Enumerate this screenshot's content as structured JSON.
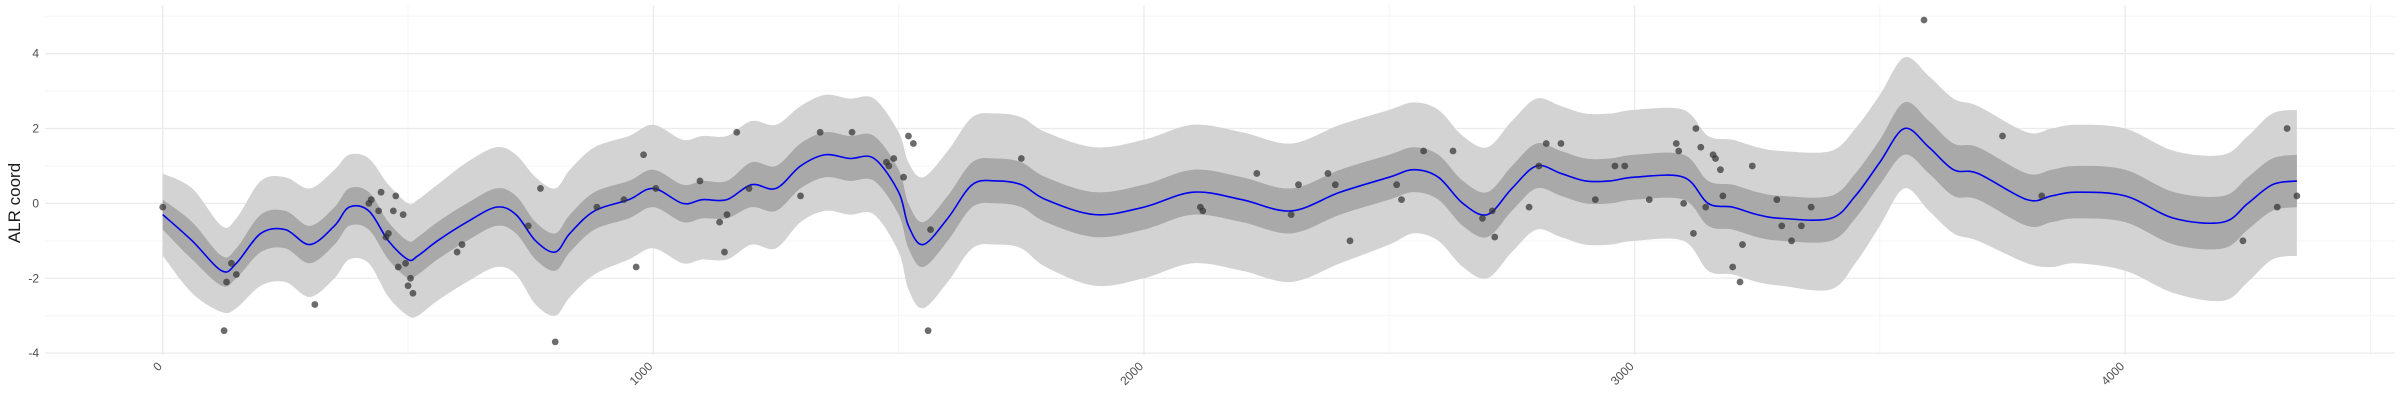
{
  "chart_data": {
    "type": "line",
    "title": "",
    "xlabel": "",
    "ylabel": "ALR coord",
    "xlim": [
      -240,
      4550
    ],
    "ylim": [
      -4.05,
      5.3
    ],
    "x_ticks": [
      0,
      1000,
      2000,
      3000,
      4000
    ],
    "x_tick_labels": [
      "0",
      "1000",
      "2000",
      "3000",
      "4000"
    ],
    "y_ticks": [
      -4,
      -2,
      0,
      2,
      4
    ],
    "y_tick_labels": [
      "-4",
      "-2",
      "0",
      "2",
      "4"
    ],
    "x_minor_ticks": [
      500,
      1500,
      2500,
      3500,
      4500
    ],
    "y_minor_ticks": [
      -3,
      -1,
      1,
      3,
      5
    ],
    "grid": true,
    "theme": "minimal",
    "colors": {
      "mean_line": "#0000ee",
      "inner_band": "#a9a9a9",
      "outer_band": "#d3d3d3",
      "points": "#333333",
      "grid_major": "#ebebeb",
      "grid_minor": "#f5f5f5"
    },
    "mean": {
      "x": [
        0,
        60,
        120,
        150,
        200,
        250,
        300,
        350,
        380,
        420,
        460,
        500,
        520,
        560,
        620,
        680,
        720,
        760,
        800,
        830,
        880,
        950,
        1000,
        1060,
        1100,
        1150,
        1200,
        1250,
        1300,
        1350,
        1400,
        1450,
        1500,
        1520,
        1550,
        1600,
        1650,
        1700,
        1750,
        1800,
        1900,
        2000,
        2100,
        2200,
        2300,
        2400,
        2500,
        2550,
        2600,
        2650,
        2700,
        2750,
        2800,
        2850,
        2900,
        2950,
        3000,
        3100,
        3150,
        3200,
        3250,
        3300,
        3400,
        3450,
        3500,
        3550,
        3600,
        3650,
        3700,
        3800,
        3850,
        3900,
        4000,
        4100,
        4200,
        4250,
        4300,
        4350
      ],
      "y": [
        -0.3,
        -1.0,
        -1.8,
        -1.6,
        -0.8,
        -0.7,
        -1.1,
        -0.6,
        -0.1,
        -0.2,
        -1.0,
        -1.5,
        -1.4,
        -1.0,
        -0.5,
        -0.1,
        -0.3,
        -1.0,
        -1.3,
        -0.8,
        -0.2,
        0.1,
        0.4,
        0.0,
        0.1,
        0.1,
        0.5,
        0.4,
        1.0,
        1.3,
        1.2,
        1.2,
        0.3,
        -0.6,
        -1.1,
        -0.4,
        0.5,
        0.6,
        0.5,
        0.1,
        -0.3,
        -0.1,
        0.3,
        0.1,
        -0.2,
        0.3,
        0.7,
        0.9,
        0.7,
        0.0,
        -0.3,
        0.4,
        1.0,
        0.8,
        0.6,
        0.6,
        0.7,
        0.7,
        0.0,
        -0.1,
        -0.3,
        -0.4,
        -0.4,
        0.2,
        1.1,
        2.0,
        1.5,
        0.9,
        0.8,
        0.1,
        0.2,
        0.3,
        0.2,
        -0.4,
        -0.5,
        0.0,
        0.5,
        0.6
      ]
    },
    "inner_band": {
      "lower": [
        -0.7,
        -1.5,
        -2.2,
        -2.0,
        -1.3,
        -1.2,
        -1.6,
        -1.1,
        -0.6,
        -0.7,
        -1.5,
        -2.0,
        -1.9,
        -1.5,
        -1.0,
        -0.6,
        -0.8,
        -1.5,
        -1.8,
        -1.3,
        -0.7,
        -0.4,
        -0.1,
        -0.5,
        -0.4,
        -0.4,
        -0.1,
        -0.2,
        0.4,
        0.7,
        0.6,
        0.6,
        -0.3,
        -1.2,
        -1.7,
        -1.0,
        -0.1,
        0.0,
        -0.1,
        -0.5,
        -0.9,
        -0.7,
        -0.3,
        -0.5,
        -0.8,
        -0.3,
        0.1,
        0.3,
        0.1,
        -0.6,
        -0.9,
        -0.2,
        0.4,
        0.2,
        0.0,
        0.0,
        0.1,
        0.1,
        -0.6,
        -0.7,
        -0.9,
        -1.0,
        -1.0,
        -0.4,
        0.5,
        1.3,
        0.8,
        0.2,
        0.1,
        -0.6,
        -0.5,
        -0.4,
        -0.5,
        -1.1,
        -1.2,
        -0.7,
        -0.2,
        -0.1
      ],
      "upper": [
        0.1,
        -0.5,
        -1.4,
        -1.2,
        -0.3,
        -0.2,
        -0.6,
        -0.1,
        0.4,
        0.3,
        -0.5,
        -1.0,
        -0.9,
        -0.5,
        0.0,
        0.4,
        0.2,
        -0.5,
        -0.8,
        -0.3,
        0.3,
        0.6,
        0.9,
        0.5,
        0.6,
        0.6,
        1.1,
        1.0,
        1.6,
        1.9,
        1.8,
        1.8,
        0.9,
        0.0,
        -0.5,
        0.2,
        1.1,
        1.2,
        1.1,
        0.7,
        0.3,
        0.5,
        0.9,
        0.7,
        0.4,
        0.9,
        1.3,
        1.5,
        1.3,
        0.6,
        0.3,
        1.0,
        1.6,
        1.4,
        1.2,
        1.2,
        1.3,
        1.3,
        0.6,
        0.5,
        0.3,
        0.2,
        0.2,
        0.8,
        1.7,
        2.7,
        2.2,
        1.6,
        1.5,
        0.8,
        0.9,
        1.0,
        0.9,
        0.3,
        0.2,
        0.7,
        1.2,
        1.3
      ]
    },
    "outer_band": {
      "lower": [
        -1.4,
        -2.4,
        -2.9,
        -2.8,
        -2.2,
        -2.1,
        -2.5,
        -2.0,
        -1.5,
        -1.6,
        -2.5,
        -3.0,
        -3.0,
        -2.6,
        -2.1,
        -1.7,
        -1.9,
        -2.7,
        -3.0,
        -2.5,
        -1.9,
        -1.5,
        -1.2,
        -1.6,
        -1.5,
        -1.5,
        -1.1,
        -1.2,
        -0.5,
        -0.2,
        -0.3,
        -0.3,
        -1.3,
        -2.3,
        -2.8,
        -2.1,
        -1.2,
        -1.1,
        -1.2,
        -1.7,
        -2.2,
        -2.0,
        -1.6,
        -1.8,
        -2.1,
        -1.6,
        -1.1,
        -0.8,
        -1.0,
        -1.7,
        -2.0,
        -1.3,
        -0.7,
        -0.9,
        -1.1,
        -1.1,
        -1.0,
        -1.0,
        -1.8,
        -1.9,
        -2.1,
        -2.2,
        -2.3,
        -1.6,
        -0.6,
        0.4,
        -0.2,
        -0.8,
        -1.0,
        -1.6,
        -1.7,
        -1.6,
        -1.8,
        -2.4,
        -2.6,
        -2.1,
        -1.5,
        -1.4
      ],
      "upper": [
        0.8,
        0.4,
        -0.6,
        -0.4,
        0.6,
        0.7,
        0.4,
        0.9,
        1.3,
        1.2,
        0.5,
        0.0,
        0.1,
        0.5,
        1.1,
        1.5,
        1.3,
        0.7,
        0.4,
        0.9,
        1.5,
        1.8,
        2.1,
        1.7,
        1.8,
        1.8,
        2.2,
        2.1,
        2.6,
        2.9,
        2.8,
        2.8,
        1.9,
        1.1,
        0.7,
        1.4,
        2.3,
        2.4,
        2.3,
        1.9,
        1.5,
        1.7,
        2.1,
        1.9,
        1.6,
        2.1,
        2.5,
        2.7,
        2.5,
        1.8,
        1.5,
        2.2,
        2.8,
        2.6,
        2.4,
        2.4,
        2.5,
        2.5,
        1.8,
        1.7,
        1.5,
        1.4,
        1.4,
        2.0,
        2.9,
        3.9,
        3.4,
        2.8,
        2.6,
        1.9,
        2.0,
        2.1,
        2.0,
        1.4,
        1.3,
        1.8,
        2.4,
        2.5
      ]
    },
    "points": [
      {
        "x": 0,
        "y": -0.1
      },
      {
        "x": 125,
        "y": -3.4
      },
      {
        "x": 130,
        "y": -2.1
      },
      {
        "x": 140,
        "y": -1.6
      },
      {
        "x": 150,
        "y": -1.9
      },
      {
        "x": 310,
        "y": -2.7
      },
      {
        "x": 420,
        "y": 0.0
      },
      {
        "x": 425,
        "y": 0.1
      },
      {
        "x": 440,
        "y": -0.2
      },
      {
        "x": 445,
        "y": 0.3
      },
      {
        "x": 455,
        "y": -0.9
      },
      {
        "x": 460,
        "y": -0.8
      },
      {
        "x": 470,
        "y": -0.2
      },
      {
        "x": 475,
        "y": 0.2
      },
      {
        "x": 480,
        "y": -1.7
      },
      {
        "x": 490,
        "y": -0.3
      },
      {
        "x": 495,
        "y": -1.6
      },
      {
        "x": 500,
        "y": -2.2
      },
      {
        "x": 505,
        "y": -2.0
      },
      {
        "x": 510,
        "y": -2.4
      },
      {
        "x": 600,
        "y": -1.3
      },
      {
        "x": 610,
        "y": -1.1
      },
      {
        "x": 745,
        "y": -0.6
      },
      {
        "x": 770,
        "y": 0.4
      },
      {
        "x": 800,
        "y": -3.7
      },
      {
        "x": 885,
        "y": -0.1
      },
      {
        "x": 940,
        "y": 0.1
      },
      {
        "x": 965,
        "y": -1.7
      },
      {
        "x": 980,
        "y": 1.3
      },
      {
        "x": 1005,
        "y": 0.4
      },
      {
        "x": 1095,
        "y": 0.6
      },
      {
        "x": 1135,
        "y": -0.5
      },
      {
        "x": 1145,
        "y": -1.3
      },
      {
        "x": 1150,
        "y": -0.3
      },
      {
        "x": 1170,
        "y": 1.9
      },
      {
        "x": 1195,
        "y": 0.4
      },
      {
        "x": 1300,
        "y": 0.2
      },
      {
        "x": 1340,
        "y": 1.9
      },
      {
        "x": 1405,
        "y": 1.9
      },
      {
        "x": 1475,
        "y": 1.1
      },
      {
        "x": 1480,
        "y": 1.0
      },
      {
        "x": 1490,
        "y": 1.2
      },
      {
        "x": 1510,
        "y": 0.7
      },
      {
        "x": 1520,
        "y": 1.8
      },
      {
        "x": 1530,
        "y": 1.6
      },
      {
        "x": 1560,
        "y": -3.4
      },
      {
        "x": 1565,
        "y": -0.7
      },
      {
        "x": 1750,
        "y": 1.2
      },
      {
        "x": 2115,
        "y": -0.1
      },
      {
        "x": 2120,
        "y": -0.2
      },
      {
        "x": 2230,
        "y": 0.8
      },
      {
        "x": 2300,
        "y": -0.3
      },
      {
        "x": 2315,
        "y": 0.5
      },
      {
        "x": 2375,
        "y": 0.8
      },
      {
        "x": 2390,
        "y": 0.5
      },
      {
        "x": 2420,
        "y": -1.0
      },
      {
        "x": 2515,
        "y": 0.5
      },
      {
        "x": 2525,
        "y": 0.1
      },
      {
        "x": 2570,
        "y": 1.4
      },
      {
        "x": 2630,
        "y": 1.4
      },
      {
        "x": 2690,
        "y": -0.4
      },
      {
        "x": 2710,
        "y": -0.2
      },
      {
        "x": 2715,
        "y": -0.9
      },
      {
        "x": 2785,
        "y": -0.1
      },
      {
        "x": 2805,
        "y": 1.0
      },
      {
        "x": 2820,
        "y": 1.6
      },
      {
        "x": 2850,
        "y": 1.6
      },
      {
        "x": 2920,
        "y": 0.1
      },
      {
        "x": 2960,
        "y": 1.0
      },
      {
        "x": 2980,
        "y": 1.0
      },
      {
        "x": 3030,
        "y": 0.1
      },
      {
        "x": 3085,
        "y": 1.6
      },
      {
        "x": 3090,
        "y": 1.4
      },
      {
        "x": 3100,
        "y": 0.0
      },
      {
        "x": 3120,
        "y": -0.8
      },
      {
        "x": 3125,
        "y": 2.0
      },
      {
        "x": 3135,
        "y": 1.5
      },
      {
        "x": 3145,
        "y": -0.1
      },
      {
        "x": 3160,
        "y": 1.3
      },
      {
        "x": 3165,
        "y": 1.2
      },
      {
        "x": 3175,
        "y": 0.9
      },
      {
        "x": 3180,
        "y": 0.2
      },
      {
        "x": 3200,
        "y": -1.7
      },
      {
        "x": 3215,
        "y": -2.1
      },
      {
        "x": 3220,
        "y": -1.1
      },
      {
        "x": 3240,
        "y": 1.0
      },
      {
        "x": 3290,
        "y": 0.1
      },
      {
        "x": 3300,
        "y": -0.6
      },
      {
        "x": 3320,
        "y": -1.0
      },
      {
        "x": 3340,
        "y": -0.6
      },
      {
        "x": 3360,
        "y": -0.1
      },
      {
        "x": 3590,
        "y": 4.9
      },
      {
        "x": 3750,
        "y": 1.8
      },
      {
        "x": 3830,
        "y": 0.2
      },
      {
        "x": 4240,
        "y": -1.0
      },
      {
        "x": 4310,
        "y": -0.1
      },
      {
        "x": 4330,
        "y": 2.0
      },
      {
        "x": 4350,
        "y": 0.2
      }
    ]
  }
}
